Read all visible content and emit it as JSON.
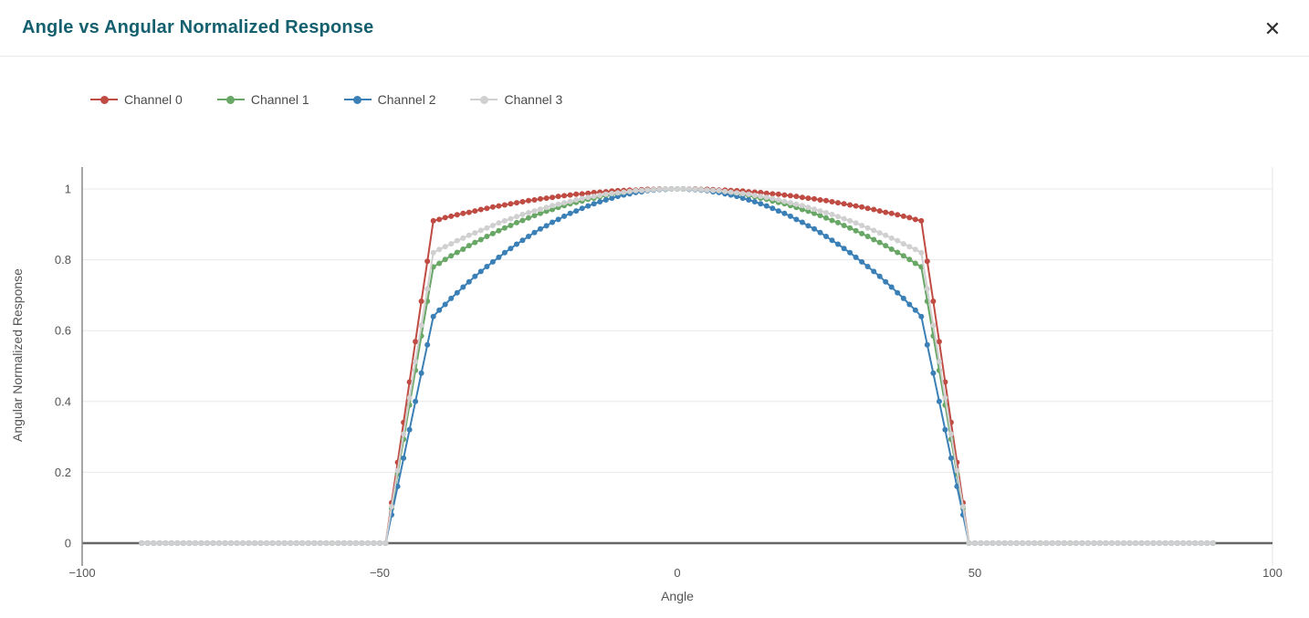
{
  "header": {
    "title": "Angle vs Angular Normalized Response",
    "close_icon": "✕"
  },
  "colors": {
    "title": "#15606e",
    "zero_line": "#666666",
    "gridline": "#e8e8e8",
    "axis_line": "#888888"
  },
  "chart_data": {
    "type": "line",
    "title": "Angle vs Angular Normalized Response",
    "xlabel": "Angle",
    "ylabel": "Angular Normalized Response",
    "xlim": [
      -100,
      100
    ],
    "ylim": [
      0,
      1.06
    ],
    "x_ticks": [
      -100,
      -50,
      0,
      50,
      100
    ],
    "y_ticks": [
      0,
      0.2,
      0.4,
      0.6,
      0.8,
      1
    ],
    "grid": true,
    "legend_position": "top-left",
    "x": [
      -90,
      -89,
      -88,
      -87,
      -86,
      -85,
      -84,
      -83,
      -82,
      -81,
      -80,
      -79,
      -78,
      -77,
      -76,
      -75,
      -74,
      -73,
      -72,
      -71,
      -70,
      -69,
      -68,
      -67,
      -66,
      -65,
      -64,
      -63,
      -62,
      -61,
      -60,
      -59,
      -58,
      -57,
      -56,
      -55,
      -54,
      -53,
      -52,
      -51,
      -50,
      -49,
      -48,
      -47,
      -46,
      -45,
      -44,
      -43,
      -42,
      -41,
      -40,
      -39,
      -38,
      -37,
      -36,
      -35,
      -34,
      -33,
      -32,
      -31,
      -30,
      -29,
      -28,
      -27,
      -26,
      -25,
      -24,
      -23,
      -22,
      -21,
      -20,
      -19,
      -18,
      -17,
      -16,
      -15,
      -14,
      -13,
      -12,
      -11,
      -10,
      -9,
      -8,
      -7,
      -6,
      -5,
      -4,
      -3,
      -2,
      -1,
      0,
      1,
      2,
      3,
      4,
      5,
      6,
      7,
      8,
      9,
      10,
      11,
      12,
      13,
      14,
      15,
      16,
      17,
      18,
      19,
      20,
      21,
      22,
      23,
      24,
      25,
      26,
      27,
      28,
      29,
      30,
      31,
      32,
      33,
      34,
      35,
      36,
      37,
      38,
      39,
      40,
      41,
      42,
      43,
      44,
      45,
      46,
      47,
      48,
      49,
      50,
      51,
      52,
      53,
      54,
      55,
      56,
      57,
      58,
      59,
      60,
      61,
      62,
      63,
      64,
      65,
      66,
      67,
      68,
      69,
      70,
      71,
      72,
      73,
      74,
      75,
      76,
      77,
      78,
      79,
      80,
      81,
      82,
      83,
      84,
      85,
      86,
      87,
      88,
      89,
      90
    ],
    "series": [
      {
        "name": "Channel 0",
        "color": "#bf4b43",
        "values": [
          0,
          0,
          0,
          0,
          0,
          0,
          0,
          0,
          0,
          0,
          0,
          0,
          0,
          0,
          0,
          0,
          0,
          0,
          0,
          0,
          0,
          0,
          0,
          0,
          0,
          0,
          0,
          0,
          0,
          0,
          0,
          0,
          0,
          0,
          0,
          0,
          0,
          0,
          0,
          0,
          0,
          0,
          0.114,
          0.228,
          0.341,
          0.455,
          0.569,
          0.683,
          0.796,
          0.91,
          0.914,
          0.919,
          0.923,
          0.927,
          0.931,
          0.934,
          0.938,
          0.942,
          0.945,
          0.949,
          0.952,
          0.955,
          0.958,
          0.961,
          0.964,
          0.967,
          0.969,
          0.972,
          0.974,
          0.976,
          0.979,
          0.981,
          0.983,
          0.985,
          0.986,
          0.988,
          0.99,
          0.991,
          0.992,
          0.994,
          0.995,
          0.996,
          0.997,
          0.997,
          0.998,
          0.999,
          0.999,
          1,
          1,
          1,
          1,
          1,
          1,
          1,
          0.999,
          0.999,
          0.998,
          0.997,
          0.997,
          0.996,
          0.995,
          0.994,
          0.992,
          0.991,
          0.99,
          0.988,
          0.986,
          0.985,
          0.983,
          0.981,
          0.979,
          0.976,
          0.974,
          0.972,
          0.969,
          0.967,
          0.964,
          0.961,
          0.958,
          0.955,
          0.952,
          0.949,
          0.945,
          0.942,
          0.938,
          0.934,
          0.931,
          0.927,
          0.923,
          0.919,
          0.914,
          0.91,
          0.796,
          0.683,
          0.569,
          0.455,
          0.341,
          0.228,
          0.114,
          0,
          0,
          0,
          0,
          0,
          0,
          0,
          0,
          0,
          0,
          0,
          0,
          0,
          0,
          0,
          0,
          0,
          0,
          0,
          0,
          0,
          0,
          0,
          0,
          0,
          0,
          0,
          0,
          0,
          0,
          0,
          0,
          0,
          0,
          0,
          0,
          0,
          0,
          0,
          0,
          0,
          0
        ]
      },
      {
        "name": "Channel 1",
        "color": "#68a765",
        "values": [
          0,
          0,
          0,
          0,
          0,
          0,
          0,
          0,
          0,
          0,
          0,
          0,
          0,
          0,
          0,
          0,
          0,
          0,
          0,
          0,
          0,
          0,
          0,
          0,
          0,
          0,
          0,
          0,
          0,
          0,
          0,
          0,
          0,
          0,
          0,
          0,
          0,
          0,
          0,
          0,
          0,
          0,
          0.098,
          0.195,
          0.293,
          0.39,
          0.488,
          0.585,
          0.683,
          0.78,
          0.79,
          0.801,
          0.811,
          0.821,
          0.83,
          0.84,
          0.849,
          0.857,
          0.866,
          0.874,
          0.882,
          0.89,
          0.897,
          0.905,
          0.911,
          0.918,
          0.925,
          0.931,
          0.937,
          0.942,
          0.948,
          0.953,
          0.958,
          0.962,
          0.966,
          0.971,
          0.974,
          0.978,
          0.981,
          0.984,
          0.987,
          0.989,
          0.992,
          0.994,
          0.995,
          0.997,
          0.998,
          0.999,
          0.999,
          1,
          1,
          1,
          0.999,
          0.999,
          0.998,
          0.997,
          0.995,
          0.994,
          0.992,
          0.989,
          0.987,
          0.984,
          0.981,
          0.978,
          0.974,
          0.971,
          0.966,
          0.962,
          0.958,
          0.953,
          0.948,
          0.942,
          0.937,
          0.931,
          0.925,
          0.918,
          0.911,
          0.905,
          0.897,
          0.89,
          0.882,
          0.874,
          0.866,
          0.857,
          0.849,
          0.84,
          0.83,
          0.821,
          0.811,
          0.801,
          0.79,
          0.78,
          0.683,
          0.585,
          0.488,
          0.39,
          0.293,
          0.195,
          0.098,
          0,
          0,
          0,
          0,
          0,
          0,
          0,
          0,
          0,
          0,
          0,
          0,
          0,
          0,
          0,
          0,
          0,
          0,
          0,
          0,
          0,
          0,
          0,
          0,
          0,
          0,
          0,
          0,
          0,
          0,
          0,
          0,
          0,
          0,
          0,
          0,
          0,
          0,
          0,
          0,
          0,
          0
        ]
      },
      {
        "name": "Channel 2",
        "color": "#3a7fb5",
        "values": [
          0,
          0,
          0,
          0,
          0,
          0,
          0,
          0,
          0,
          0,
          0,
          0,
          0,
          0,
          0,
          0,
          0,
          0,
          0,
          0,
          0,
          0,
          0,
          0,
          0,
          0,
          0,
          0,
          0,
          0,
          0,
          0,
          0,
          0,
          0,
          0,
          0,
          0,
          0,
          0,
          0,
          0,
          0.08,
          0.16,
          0.24,
          0.32,
          0.4,
          0.48,
          0.56,
          0.64,
          0.658,
          0.674,
          0.691,
          0.707,
          0.723,
          0.738,
          0.753,
          0.767,
          0.781,
          0.794,
          0.807,
          0.82,
          0.832,
          0.844,
          0.855,
          0.866,
          0.877,
          0.887,
          0.896,
          0.906,
          0.914,
          0.923,
          0.931,
          0.938,
          0.945,
          0.952,
          0.958,
          0.964,
          0.969,
          0.974,
          0.979,
          0.983,
          0.986,
          0.99,
          0.992,
          0.995,
          0.997,
          0.998,
          0.999,
          1,
          1,
          1,
          0.999,
          0.998,
          0.997,
          0.995,
          0.992,
          0.99,
          0.986,
          0.983,
          0.979,
          0.974,
          0.969,
          0.964,
          0.958,
          0.952,
          0.945,
          0.938,
          0.931,
          0.923,
          0.914,
          0.906,
          0.896,
          0.887,
          0.877,
          0.866,
          0.855,
          0.844,
          0.832,
          0.82,
          0.807,
          0.794,
          0.781,
          0.767,
          0.753,
          0.738,
          0.723,
          0.707,
          0.691,
          0.674,
          0.658,
          0.64,
          0.56,
          0.48,
          0.4,
          0.32,
          0.24,
          0.16,
          0.08,
          0,
          0,
          0,
          0,
          0,
          0,
          0,
          0,
          0,
          0,
          0,
          0,
          0,
          0,
          0,
          0,
          0,
          0,
          0,
          0,
          0,
          0,
          0,
          0,
          0,
          0,
          0,
          0,
          0,
          0,
          0,
          0,
          0,
          0,
          0,
          0,
          0,
          0,
          0,
          0,
          0,
          0
        ]
      },
      {
        "name": "Channel 3",
        "color": "#d0d0d0",
        "values": [
          0,
          0,
          0,
          0,
          0,
          0,
          0,
          0,
          0,
          0,
          0,
          0,
          0,
          0,
          0,
          0,
          0,
          0,
          0,
          0,
          0,
          0,
          0,
          0,
          0,
          0,
          0,
          0,
          0,
          0,
          0,
          0,
          0,
          0,
          0,
          0,
          0,
          0,
          0,
          0,
          0,
          0,
          0.103,
          0.205,
          0.308,
          0.41,
          0.513,
          0.615,
          0.718,
          0.82,
          0.829,
          0.837,
          0.845,
          0.854,
          0.861,
          0.869,
          0.876,
          0.883,
          0.89,
          0.897,
          0.904,
          0.91,
          0.916,
          0.922,
          0.928,
          0.933,
          0.938,
          0.943,
          0.948,
          0.953,
          0.957,
          0.961,
          0.965,
          0.969,
          0.973,
          0.976,
          0.979,
          0.982,
          0.985,
          0.987,
          0.989,
          0.991,
          0.993,
          0.995,
          0.996,
          0.997,
          0.998,
          0.999,
          1,
          1,
          1,
          1,
          1,
          0.999,
          0.998,
          0.997,
          0.996,
          0.995,
          0.993,
          0.991,
          0.989,
          0.987,
          0.985,
          0.982,
          0.979,
          0.976,
          0.973,
          0.969,
          0.965,
          0.961,
          0.957,
          0.953,
          0.948,
          0.943,
          0.938,
          0.933,
          0.928,
          0.922,
          0.916,
          0.91,
          0.904,
          0.897,
          0.89,
          0.883,
          0.876,
          0.869,
          0.861,
          0.854,
          0.845,
          0.837,
          0.829,
          0.82,
          0.718,
          0.615,
          0.513,
          0.41,
          0.308,
          0.205,
          0.103,
          0,
          0,
          0,
          0,
          0,
          0,
          0,
          0,
          0,
          0,
          0,
          0,
          0,
          0,
          0,
          0,
          0,
          0,
          0,
          0,
          0,
          0,
          0,
          0,
          0,
          0,
          0,
          0,
          0,
          0,
          0,
          0,
          0,
          0,
          0,
          0,
          0,
          0,
          0,
          0,
          0,
          0
        ]
      }
    ]
  }
}
